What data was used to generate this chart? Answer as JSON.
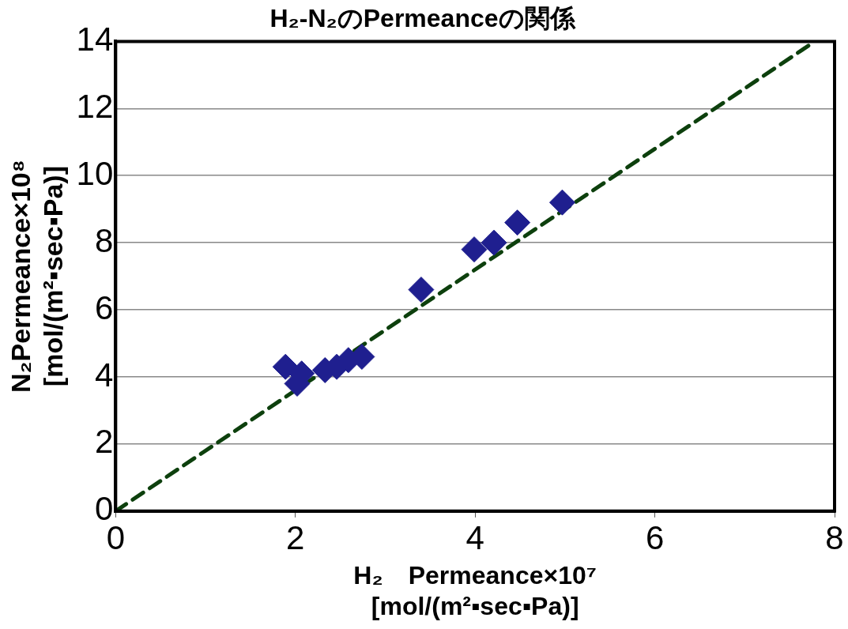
{
  "chart_data": {
    "type": "scatter",
    "title": "H₂-N₂のPermeanceの関係",
    "xlabel": "H₂　Permeance×10⁷\n[mol/(m²▪sec▪Pa)]",
    "ylabel": "N₂Permeance×10⁸\n[mol/(m²▪sec▪Pa)]",
    "xlim": [
      0,
      8
    ],
    "xticks": [
      0,
      2,
      4,
      6,
      8
    ],
    "ylim": [
      0,
      14
    ],
    "yticks": [
      0,
      2,
      4,
      6,
      8,
      10,
      12,
      14
    ],
    "grid": "y",
    "legend": false,
    "marker": "diamond",
    "series": [
      {
        "color": "#1f1f8f",
        "x": [
          1.89,
          2.02,
          2.07,
          2.33,
          2.46,
          2.59,
          2.74,
          3.4,
          3.99,
          4.21,
          4.47,
          4.97
        ],
        "values": [
          4.3,
          3.8,
          4.1,
          4.2,
          4.3,
          4.5,
          4.6,
          6.6,
          7.8,
          8.0,
          8.6,
          9.2
        ]
      },
      {
        "type": "line",
        "color": "#0d400d",
        "marker": "none",
        "line_style": "dashed",
        "x": [
          0,
          7.78
        ],
        "values": [
          0,
          14
        ]
      }
    ]
  }
}
